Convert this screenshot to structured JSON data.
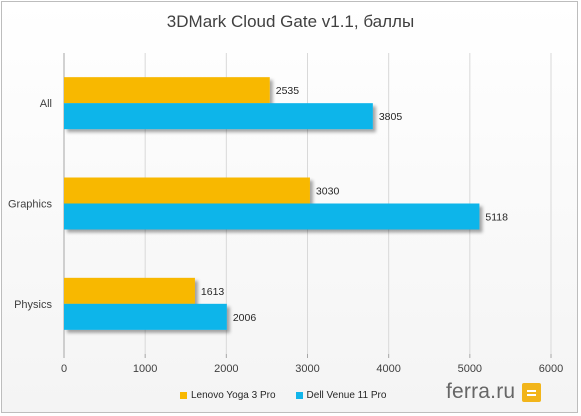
{
  "chart_data": {
    "type": "bar",
    "orientation": "horizontal",
    "title": "3DMark Cloud Gate v1.1, баллы",
    "categories": [
      "All",
      "Graphics",
      "Physics"
    ],
    "series": [
      {
        "name": "Lenovo Yoga 3 Pro",
        "color": "#f8b800",
        "values": [
          2535,
          3030,
          1613
        ]
      },
      {
        "name": "Dell Venue 11 Pro",
        "color": "#11b5ea",
        "values": [
          3805,
          5118,
          2006
        ]
      }
    ],
    "xlim": [
      0,
      6000
    ],
    "xticks": [
      0,
      1000,
      2000,
      3000,
      4000,
      5000,
      6000
    ],
    "grid": true,
    "legend": "bottom"
  },
  "brand": {
    "text": "ferra.ru",
    "icon": "ferra-logo-icon"
  }
}
